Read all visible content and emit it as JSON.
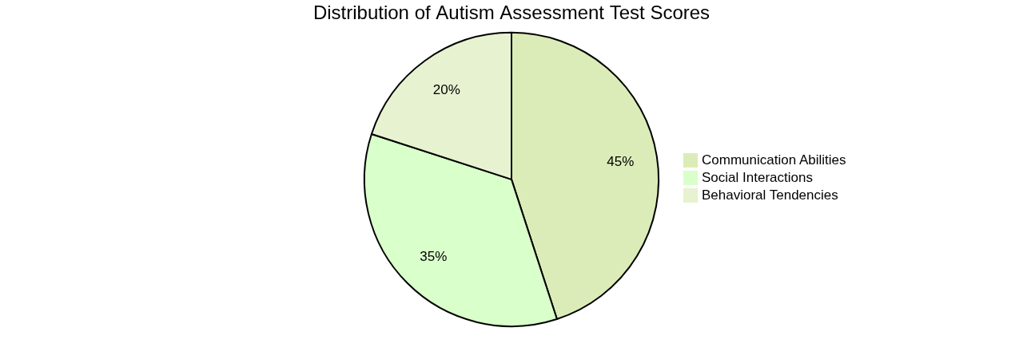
{
  "chart_data": {
    "type": "pie",
    "title": "Distribution of Autism Assessment Test Scores",
    "categories": [
      "Communication Abilities",
      "Social Interactions",
      "Behavioral Tendencies"
    ],
    "values": [
      45,
      35,
      20
    ],
    "value_labels": [
      "45%",
      "35%",
      "20%"
    ],
    "colors": [
      "#dcecb8",
      "#d9ffca",
      "#e7f2d1"
    ],
    "data_labels": true,
    "legend": "right"
  }
}
